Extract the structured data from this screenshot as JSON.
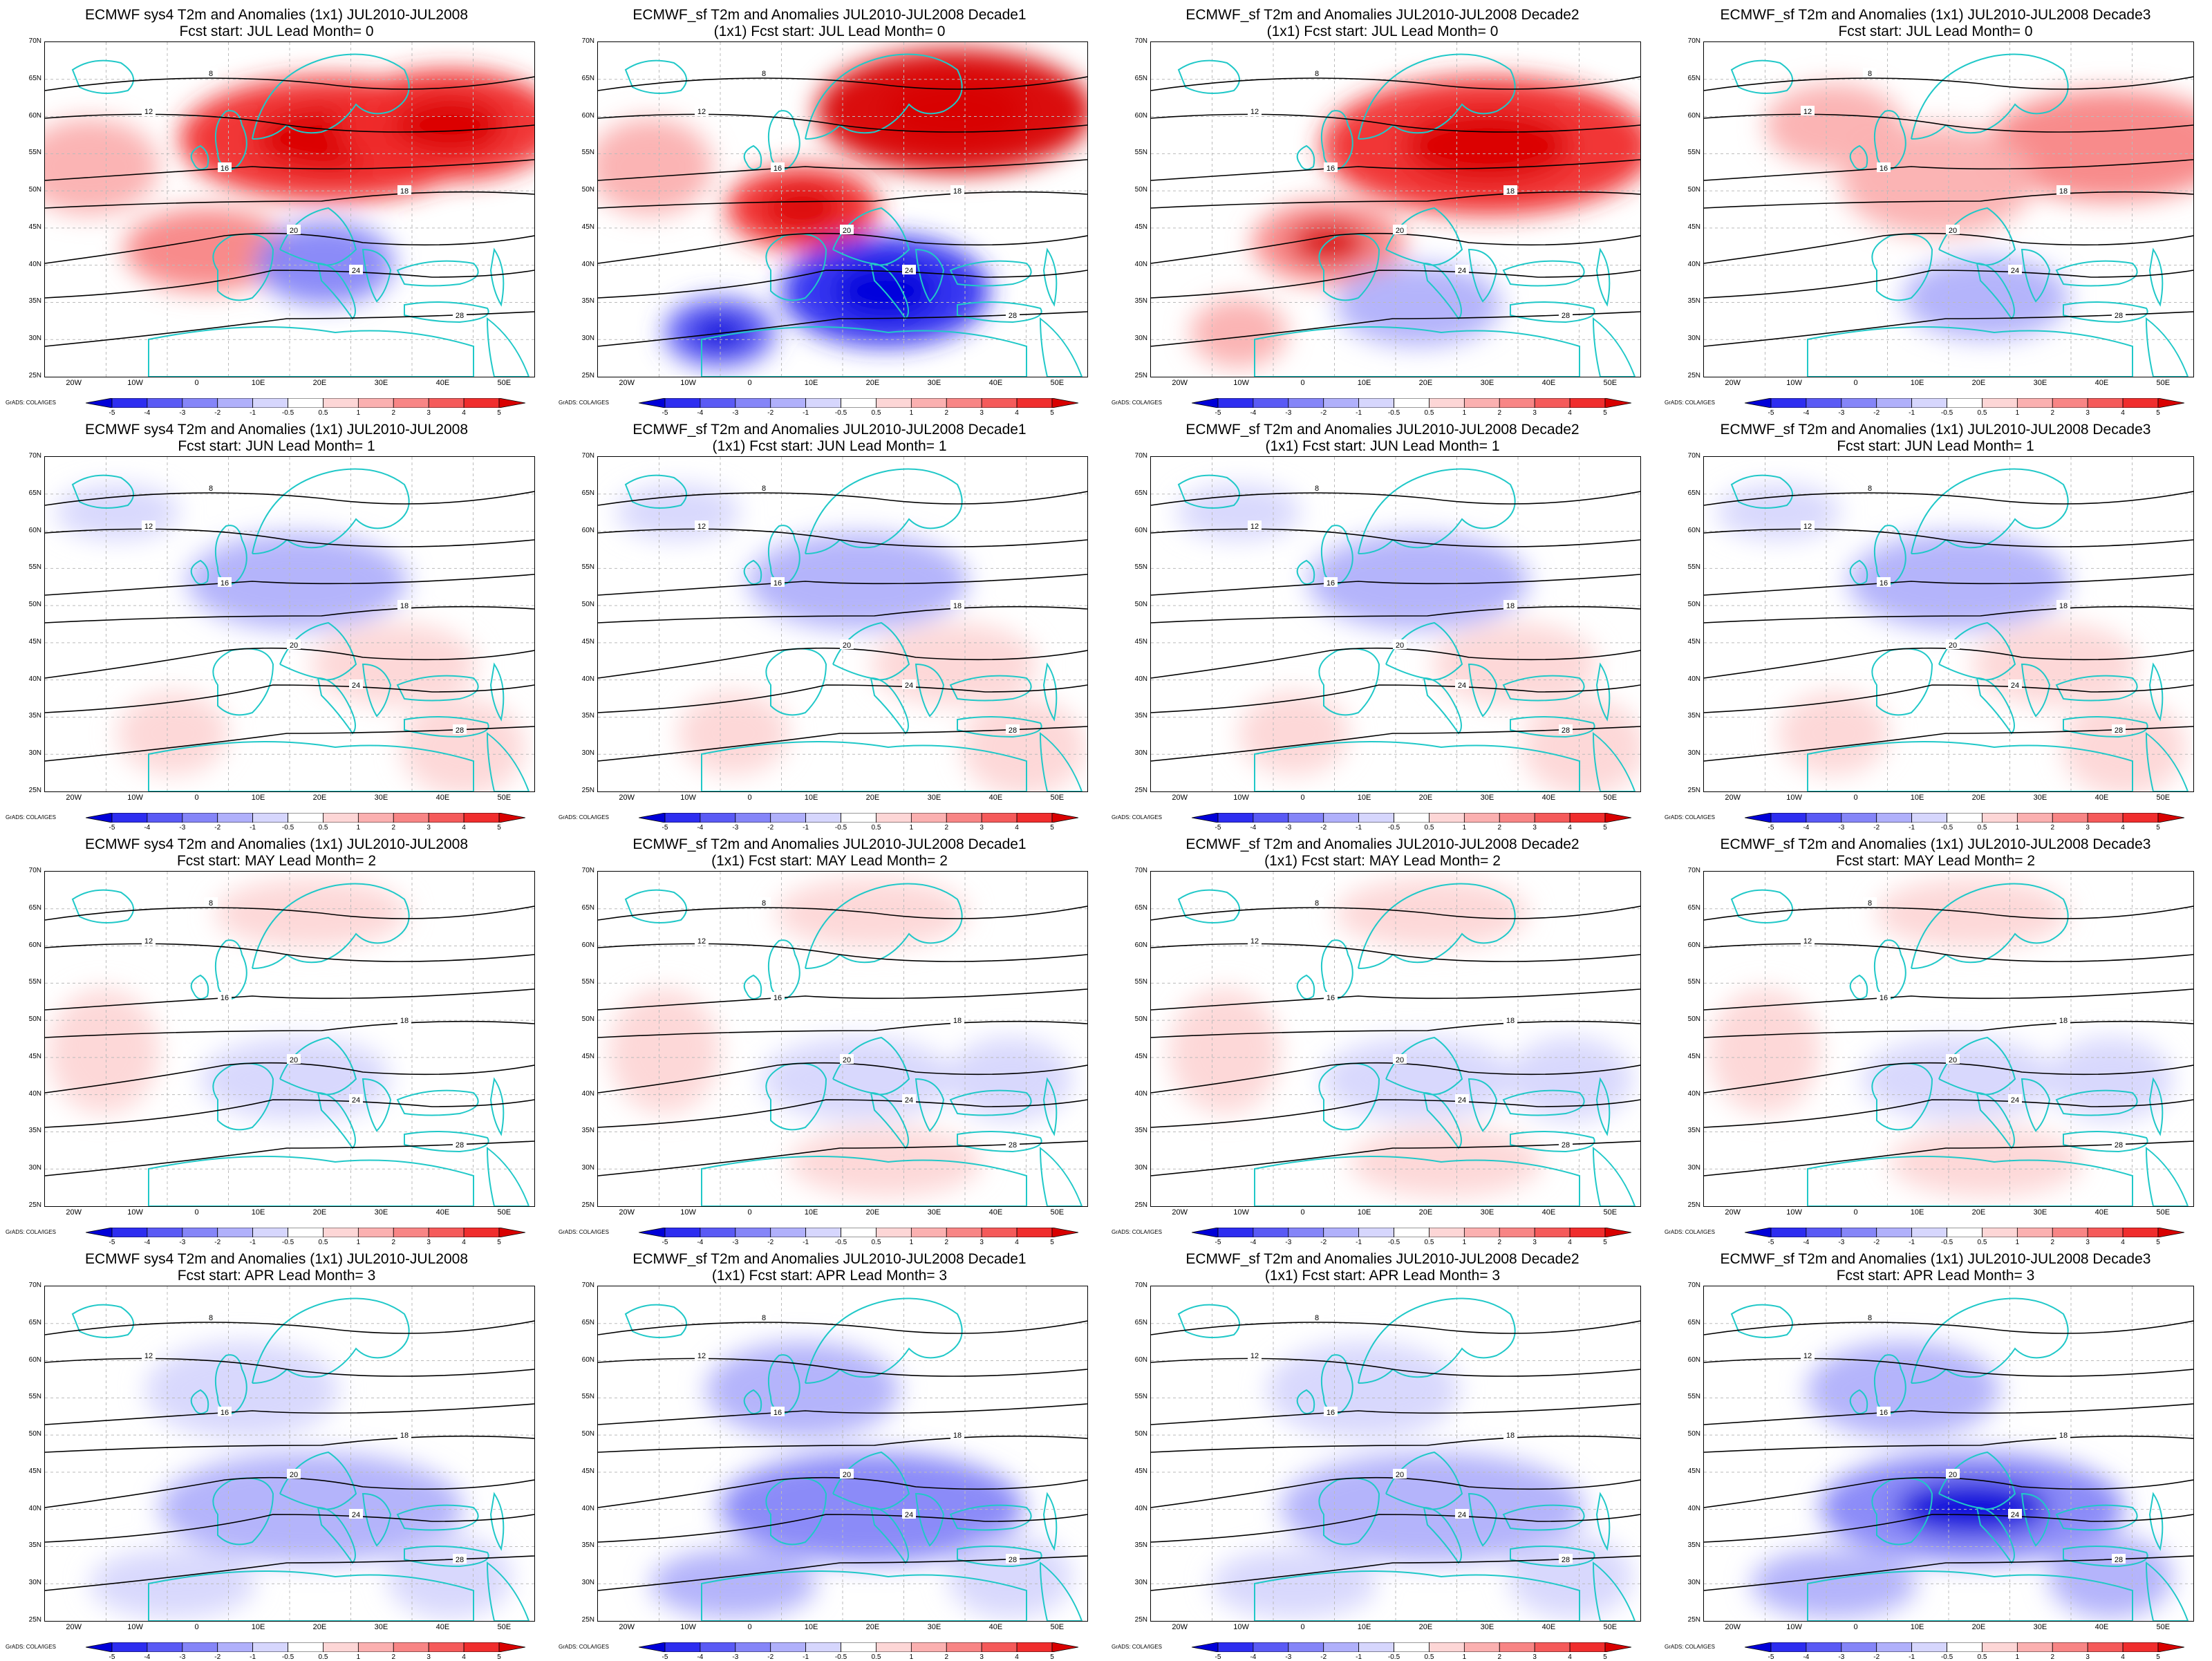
{
  "panels": [
    {
      "title1": "ECMWF sys4 T2m and Anomalies (1x1) JUL2010-JUL2008",
      "title2": "Fcst start: JUL  Lead Month= 0",
      "anomaly_level": 0.85
    },
    {
      "title1": "ECMWF_sf T2m and Anomalies JUL2010-JUL2008 Decade1",
      "title2": "(1x1) Fcst start: JUL  Lead Month= 0",
      "anomaly_level": 1.0
    },
    {
      "title1": "ECMWF_sf T2m and Anomalies JUL2010-JUL2008 Decade2",
      "title2": "(1x1) Fcst start: JUL  Lead Month= 0",
      "anomaly_level": 0.9
    },
    {
      "title1": "ECMWF_sf T2m and Anomalies (1x1) JUL2010-JUL2008 Decade3",
      "title2": "Fcst start: JUL  Lead Month= 0",
      "anomaly_level": 0.6
    },
    {
      "title1": "ECMWF sys4 T2m and Anomalies (1x1) JUL2010-JUL2008",
      "title2": "Fcst start: JUN  Lead Month= 1",
      "anomaly_level": -0.35
    },
    {
      "title1": "ECMWF_sf T2m and Anomalies JUL2010-JUL2008 Decade1",
      "title2": "(1x1) Fcst start: JUN  Lead Month= 1",
      "anomaly_level": -0.3
    },
    {
      "title1": "ECMWF_sf T2m and Anomalies JUL2010-JUL2008 Decade2",
      "title2": "(1x1) Fcst start: JUN  Lead Month= 1",
      "anomaly_level": -0.35
    },
    {
      "title1": "ECMWF_sf T2m and Anomalies (1x1) JUL2010-JUL2008 Decade3",
      "title2": "Fcst start: JUN  Lead Month= 1",
      "anomaly_level": -0.3
    },
    {
      "title1": "ECMWF sys4 T2m and Anomalies (1x1) JUL2010-JUL2008",
      "title2": "Fcst start: MAY  Lead Month= 2",
      "anomaly_level": 0.2
    },
    {
      "title1": "ECMWF_sf T2m and Anomalies JUL2010-JUL2008 Decade1",
      "title2": "(1x1) Fcst start: MAY  Lead Month= 2",
      "anomaly_level": 0.25
    },
    {
      "title1": "ECMWF_sf T2m and Anomalies JUL2010-JUL2008 Decade2",
      "title2": "(1x1) Fcst start: MAY  Lead Month= 2",
      "anomaly_level": 0.25
    },
    {
      "title1": "ECMWF_sf T2m and Anomalies (1x1) JUL2010-JUL2008 Decade3",
      "title2": "Fcst start: MAY  Lead Month= 2",
      "anomaly_level": 0.2
    },
    {
      "title1": "ECMWF sys4 T2m and Anomalies (1x1) JUL2010-JUL2008",
      "title2": "Fcst start: APR  Lead Month= 3",
      "anomaly_level": -0.45
    },
    {
      "title1": "ECMWF_sf T2m and Anomalies JUL2010-JUL2008 Decade1",
      "title2": "(1x1) Fcst start: APR  Lead Month= 3",
      "anomaly_level": -0.4
    },
    {
      "title1": "ECMWF_sf T2m and Anomalies JUL2010-JUL2008 Decade2",
      "title2": "(1x1) Fcst start: APR  Lead Month= 3",
      "anomaly_level": -0.45
    },
    {
      "title1": "ECMWF_sf T2m and Anomalies (1x1) JUL2010-JUL2008 Decade3",
      "title2": "Fcst start: APR  Lead Month= 3",
      "anomaly_level": -0.55
    }
  ],
  "lat_labels": [
    "70N",
    "65N",
    "60N",
    "55N",
    "50N",
    "45N",
    "40N",
    "35N",
    "30N",
    "25N"
  ],
  "lon_labels": [
    "20W",
    "10W",
    "0",
    "10E",
    "20E",
    "30E",
    "40E",
    "50E"
  ],
  "colorbar": {
    "ticks": [
      "-5",
      "-4",
      "-3",
      "-2",
      "-1",
      "-0.5",
      "0.5",
      "1",
      "2",
      "3",
      "4",
      "5"
    ],
    "colors": [
      "#0000d8",
      "#2d2df0",
      "#5a5af5",
      "#8585f8",
      "#b0b0fb",
      "#d6d6fd",
      "#ffffff",
      "#fdd6d6",
      "#fbb0b0",
      "#f88585",
      "#f55a5a",
      "#f02d2d",
      "#d80000"
    ],
    "credit": "GrADS: COLA/IGES"
  },
  "contour_labels": [
    "8",
    "12",
    "16",
    "18",
    "20",
    "24",
    "28"
  ],
  "colors": {
    "coast": "#20c8c8",
    "contour": "#000000"
  }
}
